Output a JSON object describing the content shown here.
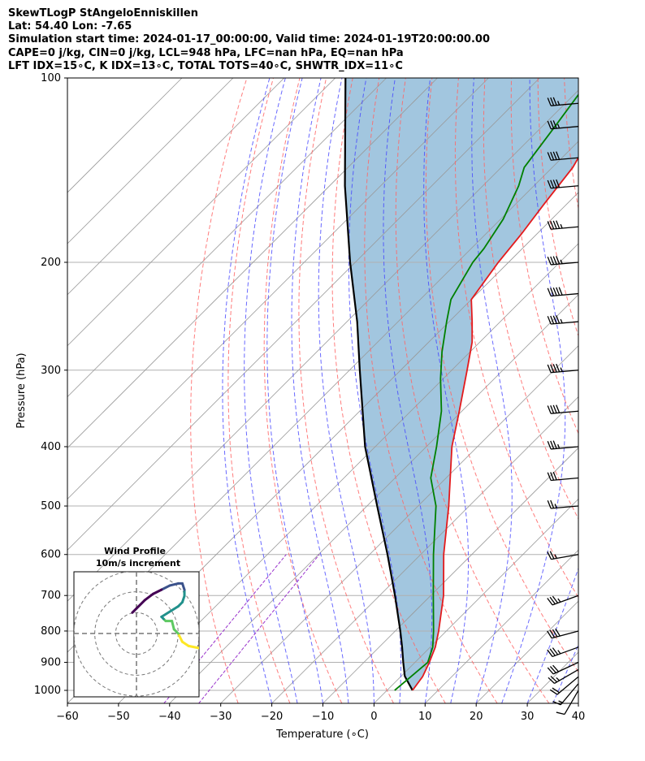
{
  "header": {
    "line1": "SkewTLogP StAngeloEnniskillen",
    "line2": "Lat: 54.40   Lon: -7.65",
    "line3": "Simulation start time: 2024-01-17_00:00:00, Valid time: 2024-01-19T20:00:00.00",
    "line4": "CAPE=0 j/kg, CIN=0 j/kg, LCL=948 hPa, LFC=nan hPa, EQ=nan hPa",
    "line5": "LFT IDX=15$^\\circ$C, K IDX=13$^\\circ$C, TOTAL TOTS=40$^\\circ$C, SHWTR_IDX=11$^\\circ$C"
  },
  "header_display": {
    "line5": "LFT IDX=15∘C, K IDX=13∘C, TOTAL TOTS=40∘C, SHWTR_IDX=11∘C"
  },
  "colors": {
    "temperature": "#e41a1c",
    "dewpoint": "#008000",
    "parcel": "#000000",
    "shading": "#7aaed2",
    "dry_adiabat": "#ff6666",
    "moist_adiabat": "#4444ff",
    "mixing_ratio": "#9932cc",
    "isotherm": "#999999",
    "hodo_colors": [
      "#440154",
      "#3b528b",
      "#21918c",
      "#5ec962",
      "#fde725"
    ]
  },
  "chart_data": {
    "type": "line",
    "title": "",
    "xlabel": "Temperature ($^\\circ$C)",
    "xlabel_display": "Temperature (∘C)",
    "ylabel": "Pressure (hPa)",
    "xlim": [
      -60,
      40
    ],
    "ylim": [
      1050,
      100
    ],
    "y_scale": "log",
    "grid": true,
    "x_ticks": [
      "−60",
      "−50",
      "−40",
      "−30",
      "−20",
      "−10",
      "0",
      "10",
      "20",
      "30",
      "40"
    ],
    "y_ticks": [
      "1000",
      "900",
      "800",
      "700",
      "600",
      "500",
      "400",
      "300",
      "200",
      "100"
    ],
    "series": [
      {
        "name": "temperature",
        "p": [
          1000,
          950,
          900,
          850,
          800,
          700,
          600,
          500,
          400,
          350,
          300,
          270,
          250,
          230,
          200,
          180,
          160,
          140,
          125,
          110,
          100
        ],
        "T": [
          5.0,
          4.3,
          2.8,
          1.0,
          -1.5,
          -7.5,
          -15.5,
          -24.0,
          -35.0,
          -40.5,
          -47.0,
          -51.5,
          -55.5,
          -60.0,
          -62.0,
          -63.0,
          -64.5,
          -66.0,
          -68.5,
          -71.0,
          -73.0
        ]
      },
      {
        "name": "dewpoint",
        "p": [
          1000,
          950,
          900,
          850,
          800,
          700,
          600,
          500,
          450,
          400,
          350,
          310,
          280,
          250,
          230,
          200,
          190,
          170,
          150,
          140,
          120,
          100
        ],
        "Td": [
          1.5,
          2.0,
          2.5,
          0.5,
          -2.5,
          -9.5,
          -17.5,
          -26.5,
          -33.0,
          -38.0,
          -44.0,
          -50.5,
          -55.5,
          -60.5,
          -64.0,
          -67.0,
          -67.5,
          -69.5,
          -73.0,
          -75.5,
          -77.5,
          -80.0
        ]
      },
      {
        "name": "parcel",
        "p": [
          1000,
          948,
          900,
          850,
          800,
          700,
          600,
          500,
          400,
          300,
          250,
          200,
          150,
          100
        ],
        "T": [
          5.0,
          0.7,
          -2.3,
          -5.5,
          -9.0,
          -17.0,
          -26.5,
          -38.0,
          -52.0,
          -68.0,
          -78.0,
          -91.0,
          -107.0,
          -128.0
        ]
      }
    ],
    "wind_barbs": {
      "p": [
        1000,
        975,
        950,
        925,
        900,
        850,
        800,
        700,
        600,
        500,
        450,
        400,
        350,
        300,
        250,
        225,
        200,
        175,
        150,
        135,
        120,
        110
      ],
      "speed_kt": [
        10,
        15,
        20,
        25,
        30,
        35,
        40,
        35,
        25,
        25,
        30,
        35,
        40,
        45,
        45,
        50,
        45,
        45,
        40,
        40,
        35,
        35
      ],
      "dir_deg": [
        210,
        220,
        230,
        240,
        245,
        250,
        255,
        250,
        260,
        265,
        265,
        265,
        265,
        265,
        265,
        265,
        265,
        265,
        265,
        265,
        265,
        265
      ]
    },
    "hodograph": {
      "title": "Wind Profile",
      "subtitle": "10m/s increment",
      "range_ms": 30,
      "ring_ms": [
        10,
        20,
        30
      ],
      "u": [
        40,
        35,
        30,
        25,
        22,
        20,
        18,
        17,
        14,
        13,
        12,
        20,
        22,
        23,
        23,
        22,
        20,
        16,
        12,
        8,
        4,
        0,
        -2
      ],
      "v": [
        -10,
        -8,
        -7,
        -6,
        -4,
        0,
        2,
        6,
        6,
        7,
        8,
        13,
        15,
        18,
        21,
        24,
        24,
        23,
        21,
        19,
        16,
        12,
        10
      ]
    }
  }
}
